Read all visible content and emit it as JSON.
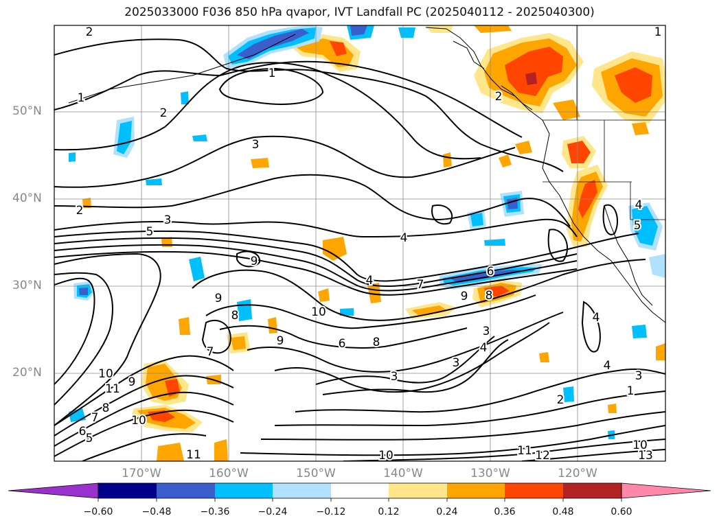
{
  "title": "2025033000 F036 850 hPa qvapor, IVT Landfall PC (2025040112 - 2025040300)",
  "lat_labels": [
    "50°N",
    "40°N",
    "30°N",
    "20°N"
  ],
  "lon_labels": [
    "170°W",
    "160°W",
    "150°W",
    "140°W",
    "130°W",
    "120°W"
  ],
  "colorbar": {
    "ticks": [
      "−0.60",
      "−0.48",
      "−0.36",
      "−0.24",
      "−0.12",
      "0.12",
      "0.24",
      "0.36",
      "0.48",
      "0.60"
    ],
    "colors": [
      "#9932cc",
      "#00008b",
      "#3a5fcd",
      "#00bfff",
      "#b0e2ff",
      "#ffffff",
      "#ffe68a",
      "#ffa500",
      "#ff4500",
      "#b22222",
      "#ff88aa"
    ]
  },
  "contour_labels": [
    {
      "text": "2"
    },
    {
      "text": "1"
    },
    {
      "text": "2"
    },
    {
      "text": "1"
    },
    {
      "text": "2"
    },
    {
      "text": "3"
    },
    {
      "text": "2"
    },
    {
      "text": "3"
    },
    {
      "text": "5"
    },
    {
      "text": "4"
    },
    {
      "text": "9"
    },
    {
      "text": "4"
    },
    {
      "text": "7"
    },
    {
      "text": "6"
    },
    {
      "text": "9"
    },
    {
      "text": "8"
    },
    {
      "text": "10"
    },
    {
      "text": "9"
    },
    {
      "text": "8"
    },
    {
      "text": "9"
    },
    {
      "text": "7"
    },
    {
      "text": "6"
    },
    {
      "text": "8"
    },
    {
      "text": "3"
    },
    {
      "text": "4"
    },
    {
      "text": "3"
    },
    {
      "text": "3"
    },
    {
      "text": "4"
    },
    {
      "text": "4"
    },
    {
      "text": "3"
    },
    {
      "text": "1"
    },
    {
      "text": "2"
    },
    {
      "text": "10"
    },
    {
      "text": "11"
    },
    {
      "text": "9"
    },
    {
      "text": "8"
    },
    {
      "text": "7"
    },
    {
      "text": "6"
    },
    {
      "text": "5"
    },
    {
      "text": "10"
    },
    {
      "text": "11"
    },
    {
      "text": "11"
    },
    {
      "text": "12"
    },
    {
      "text": "10"
    },
    {
      "text": "10"
    },
    {
      "text": "13"
    },
    {
      "text": "4"
    },
    {
      "text": "5"
    },
    {
      "text": "1"
    }
  ]
}
